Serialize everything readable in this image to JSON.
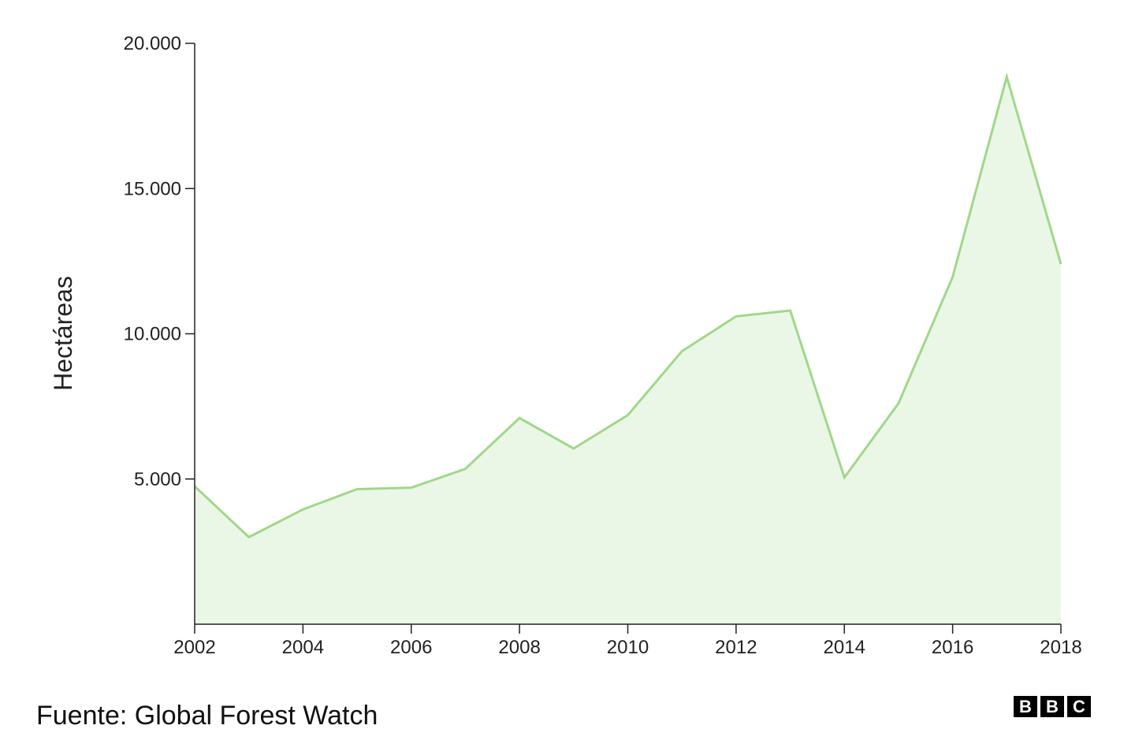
{
  "source_text": "Fuente: Global Forest Watch",
  "logo": {
    "text": "BBC",
    "letters": [
      "B",
      "B",
      "C"
    ]
  },
  "colors": {
    "line": "#9fd88a",
    "area": "#ebf7e6",
    "axis": "#222222",
    "text": "#222222"
  },
  "chart_data": {
    "type": "area",
    "title": "",
    "xlabel": "",
    "ylabel": "Hectáreas",
    "x": [
      2002,
      2003,
      2004,
      2005,
      2006,
      2007,
      2008,
      2009,
      2010,
      2011,
      2012,
      2013,
      2014,
      2015,
      2016,
      2017,
      2018
    ],
    "values": [
      4750,
      3000,
      3950,
      4650,
      4700,
      5350,
      7100,
      6050,
      7200,
      9400,
      10600,
      10800,
      5050,
      7600,
      11950,
      18850,
      12400
    ],
    "xlim": [
      2002,
      2018
    ],
    "ylim": [
      0,
      20000
    ],
    "x_ticks": [
      {
        "value": 2002,
        "label": "2002"
      },
      {
        "value": 2004,
        "label": "2004"
      },
      {
        "value": 2006,
        "label": "2006"
      },
      {
        "value": 2008,
        "label": "2008"
      },
      {
        "value": 2010,
        "label": "2010"
      },
      {
        "value": 2012,
        "label": "2012"
      },
      {
        "value": 2014,
        "label": "2014"
      },
      {
        "value": 2016,
        "label": "2016"
      },
      {
        "value": 2018,
        "label": "2018"
      }
    ],
    "y_ticks": [
      {
        "value": 5000,
        "label": "5.000"
      },
      {
        "value": 10000,
        "label": "10.000"
      },
      {
        "value": 15000,
        "label": "15.000"
      },
      {
        "value": 20000,
        "label": "20.000"
      }
    ],
    "grid": false,
    "legend": "none"
  }
}
